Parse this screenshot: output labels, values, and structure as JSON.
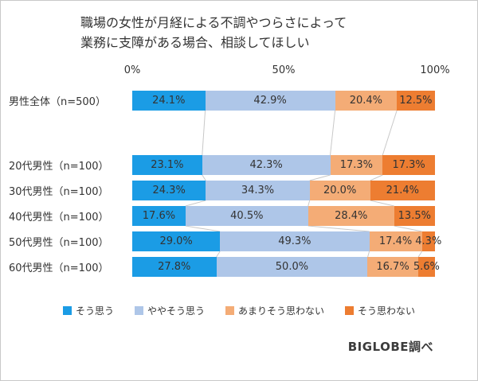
{
  "title": {
    "line1": "職場の女性が月経による不調やつらさによって",
    "line2": "業務に支障がある場合、相談してほしい"
  },
  "axis": {
    "ticks": [
      "0%",
      "50%",
      "100%"
    ]
  },
  "chart_data": {
    "type": "bar",
    "stacked": true,
    "orientation": "horizontal",
    "title": "職場の女性が月経による不調やつらさによって業務に支障がある場合、相談してほしい",
    "categories": [
      "男性全体（n=500）",
      "20代男性（n=100）",
      "30代男性（n=100）",
      "40代男性（n=100）",
      "50代男性（n=100）",
      "60代男性（n=100）"
    ],
    "series": [
      {
        "name": "そう思う",
        "color": "#1B9CE5",
        "values": [
          24.1,
          23.1,
          24.3,
          17.6,
          29.0,
          27.8
        ]
      },
      {
        "name": "ややそう思う",
        "color": "#AEC6E8",
        "values": [
          42.9,
          42.3,
          34.3,
          40.5,
          49.3,
          50.0
        ]
      },
      {
        "name": "あまりそう思わない",
        "color": "#F4AC76",
        "values": [
          20.4,
          17.3,
          20.0,
          28.4,
          17.4,
          16.7
        ]
      },
      {
        "name": "そう思わない",
        "color": "#ED7D31",
        "values": [
          12.5,
          17.3,
          21.4,
          13.5,
          4.3,
          5.6
        ]
      }
    ],
    "xlim": [
      0,
      100
    ],
    "value_suffix": "%",
    "tick_labels": [
      "0%",
      "50%",
      "100%"
    ],
    "legend_position": "bottom",
    "connector_line_color": "#C8C8C8"
  },
  "footer": {
    "credit": "BIGLOBE調べ"
  }
}
